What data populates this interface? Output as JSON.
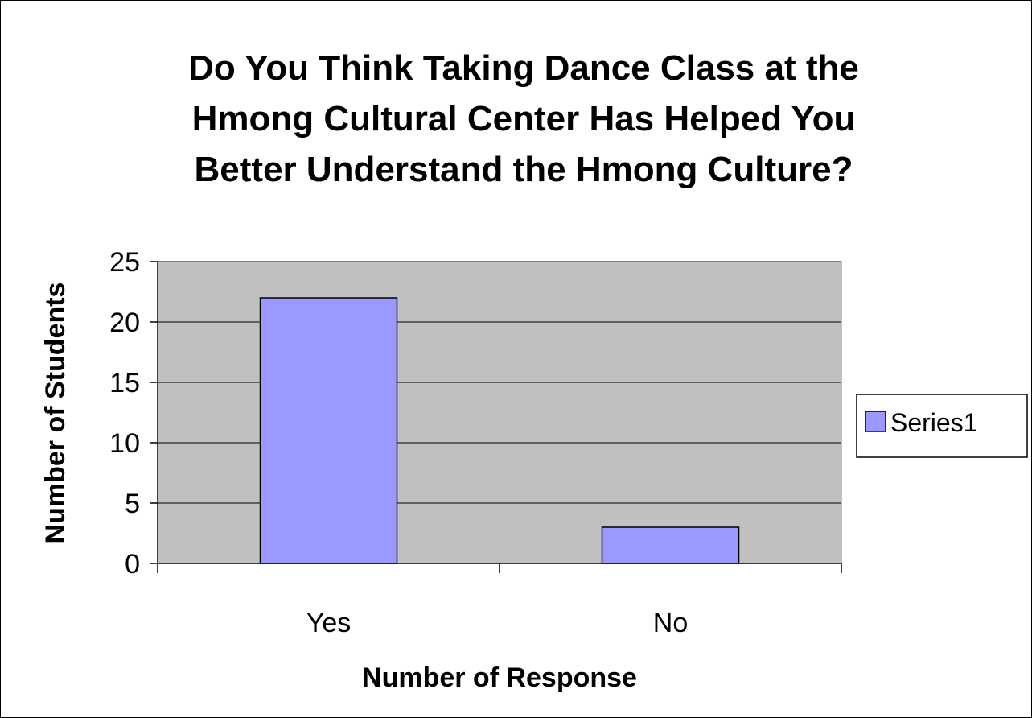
{
  "chart_data": {
    "type": "bar",
    "title_lines": [
      "Do You Think Taking Dance Class at the",
      "Hmong Cultural Center Has Helped You",
      "Better Understand the Hmong Culture?"
    ],
    "xlabel": "Number of Response",
    "ylabel": "Number of Students",
    "categories": [
      "Yes",
      "No"
    ],
    "series": [
      {
        "name": "Series1",
        "values": [
          22,
          3
        ],
        "color": "#9999ff"
      }
    ],
    "ylim": [
      0,
      25
    ],
    "yticks": [
      0,
      5,
      10,
      15,
      20,
      25
    ],
    "grid": true,
    "plot_background": "#c0c0c0",
    "legend_position": "right"
  }
}
